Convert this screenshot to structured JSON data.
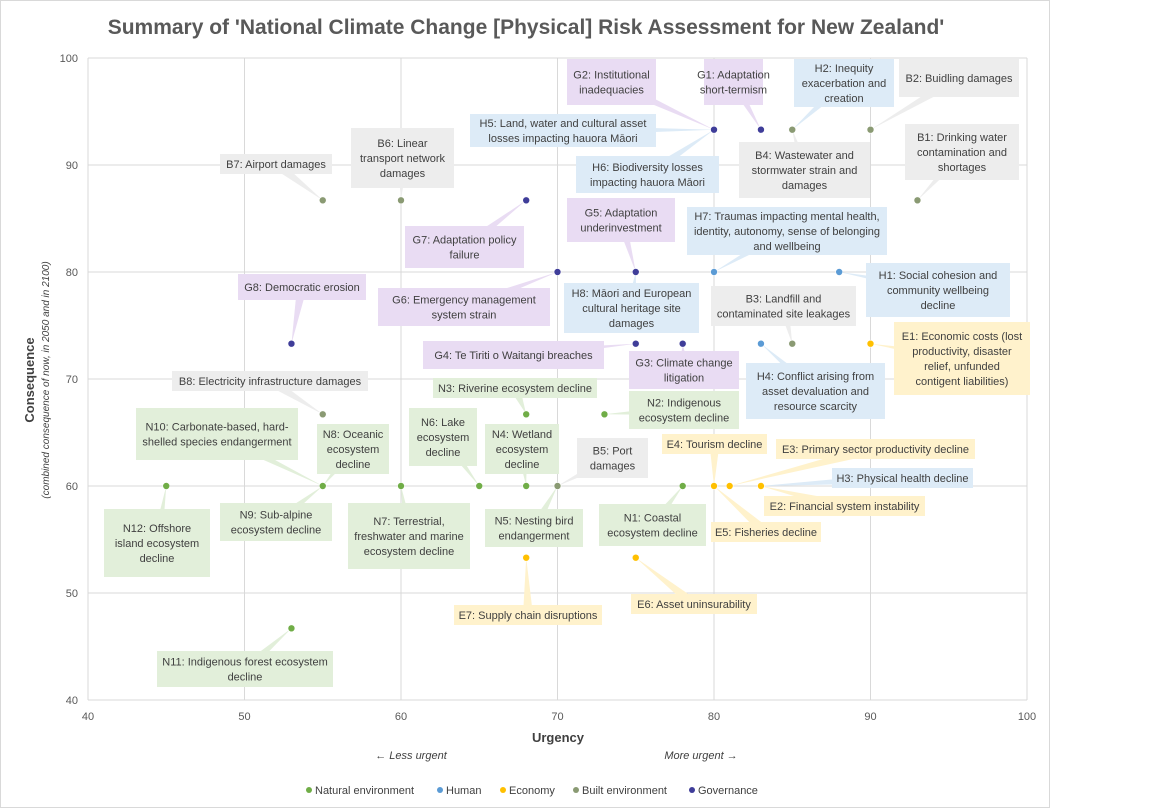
{
  "chart_data": {
    "type": "scatter",
    "title": "Summary of 'National Climate Change [Physical] Risk Assessment for New Zealand'",
    "xlabel": "Urgency",
    "ylabel": "Consequence",
    "ylabel_sub": "(combined consequence  of now, in 2050 and in 2100)",
    "xlim": [
      40,
      100
    ],
    "ylim": [
      40,
      100
    ],
    "xticks": [
      40,
      50,
      60,
      70,
      80,
      90,
      100
    ],
    "yticks": [
      40,
      50,
      60,
      70,
      80,
      90,
      100
    ],
    "grid": true,
    "less_urgent": "← Less urgent",
    "more_urgent": "More urgent →",
    "legend_position": "bottom",
    "categories": [
      {
        "key": "natural",
        "name": "Natural environment",
        "color": "#70ad47",
        "label_bg": "#e2efda"
      },
      {
        "key": "human",
        "name": "Human",
        "color": "#5b9bd5",
        "label_bg": "#ddebf7"
      },
      {
        "key": "economy",
        "name": "Economy",
        "color": "#ffc000",
        "label_bg": "#fff2cc"
      },
      {
        "key": "built",
        "name": "Built environment",
        "color": "#8a9a73",
        "label_bg": "#ededed"
      },
      {
        "key": "governance",
        "name": "Governance",
        "color": "#3f3d99",
        "label_bg": "#e9dcf3"
      }
    ],
    "points": [
      {
        "id": "N1",
        "cat": "natural",
        "x": 78,
        "y": 60,
        "label": [
          "N1: Coastal",
          "ecosystem decline"
        ]
      },
      {
        "id": "N2",
        "cat": "natural",
        "x": 73,
        "y": 66.7,
        "label": [
          "N2: Indigenous",
          "ecosystem decline"
        ]
      },
      {
        "id": "N3",
        "cat": "natural",
        "x": 68,
        "y": 66.7,
        "label": [
          "N3: Riverine ecosystem decline"
        ]
      },
      {
        "id": "N4",
        "cat": "natural",
        "x": 68,
        "y": 60,
        "label": [
          "N4: Wetland",
          "ecosystem",
          "decline"
        ]
      },
      {
        "id": "N5",
        "cat": "natural",
        "x": 70,
        "y": 60,
        "label": [
          "N5: Nesting bird",
          "endangerment"
        ]
      },
      {
        "id": "N6",
        "cat": "natural",
        "x": 65,
        "y": 60,
        "label": [
          "N6: Lake",
          "ecosystem",
          "decline"
        ]
      },
      {
        "id": "N7",
        "cat": "natural",
        "x": 60,
        "y": 60,
        "label": [
          "N7: Terrestrial,",
          "freshwater and marine",
          "ecosystem decline"
        ]
      },
      {
        "id": "N8",
        "cat": "natural",
        "x": 55,
        "y": 60,
        "label": [
          "N8: Oceanic",
          "ecosystem",
          "decline"
        ]
      },
      {
        "id": "N9",
        "cat": "natural",
        "x": 55,
        "y": 60,
        "label": [
          "N9: Sub-alpine",
          "ecosystem decline"
        ]
      },
      {
        "id": "N10",
        "cat": "natural",
        "x": 55,
        "y": 60,
        "label": [
          "N10: Carbonate-based, hard-",
          "shelled species endangerment"
        ]
      },
      {
        "id": "N11",
        "cat": "natural",
        "x": 53,
        "y": 46.7,
        "label": [
          "N11: Indigenous forest ecosystem",
          "decline"
        ]
      },
      {
        "id": "N12",
        "cat": "natural",
        "x": 45,
        "y": 60,
        "label": [
          "N12: Offshore",
          "island ecosystem",
          "decline"
        ]
      },
      {
        "id": "H1",
        "cat": "human",
        "x": 88,
        "y": 80,
        "label": [
          "H1: Social cohesion and",
          "community wellbeing",
          "decline"
        ]
      },
      {
        "id": "H2",
        "cat": "human",
        "x": 85,
        "y": 93.3,
        "label": [
          "H2: Inequity",
          "exacerbation and",
          "creation"
        ]
      },
      {
        "id": "H3",
        "cat": "human",
        "x": 83,
        "y": 60,
        "label": [
          "H3: Physical health decline"
        ]
      },
      {
        "id": "H4",
        "cat": "human",
        "x": 83,
        "y": 73.3,
        "label": [
          "H4: Conflict arising from",
          "asset devaluation and",
          "resource scarcity"
        ]
      },
      {
        "id": "H5",
        "cat": "human",
        "x": 80,
        "y": 93.3,
        "label": [
          "H5: Land, water and cultural asset",
          "losses impacting hauora Māori"
        ]
      },
      {
        "id": "H6",
        "cat": "human",
        "x": 80,
        "y": 93.3,
        "label": [
          "H6: Biodiversity losses",
          "impacting hauora Māori"
        ]
      },
      {
        "id": "H7",
        "cat": "human",
        "x": 80,
        "y": 80,
        "label": [
          "H7: Traumas impacting mental health,",
          "identity, autonomy, sense of belonging",
          "and wellbeing"
        ]
      },
      {
        "id": "H8",
        "cat": "human",
        "x": 75,
        "y": 80,
        "label": [
          "H8: Māori and European",
          "cultural heritage site",
          "damages"
        ]
      },
      {
        "id": "E1",
        "cat": "economy",
        "x": 90,
        "y": 73.3,
        "label": [
          "E1: Economic costs (lost",
          "productivity, disaster",
          "relief, unfunded",
          "contigent liabilities)"
        ]
      },
      {
        "id": "E2",
        "cat": "economy",
        "x": 83,
        "y": 60,
        "label": [
          "E2: Financial system instability"
        ]
      },
      {
        "id": "E3",
        "cat": "economy",
        "x": 81,
        "y": 60,
        "label": [
          "E3: Primary sector productivity decline"
        ]
      },
      {
        "id": "E4",
        "cat": "economy",
        "x": 80,
        "y": 60,
        "label": [
          "E4: Tourism decline"
        ]
      },
      {
        "id": "E5",
        "cat": "economy",
        "x": 80,
        "y": 60,
        "label": [
          "E5: Fisheries decline"
        ]
      },
      {
        "id": "E6",
        "cat": "economy",
        "x": 75,
        "y": 53.3,
        "label": [
          "E6: Asset uninsurability"
        ]
      },
      {
        "id": "E7",
        "cat": "economy",
        "x": 68,
        "y": 53.3,
        "label": [
          "E7: Supply chain disruptions"
        ]
      },
      {
        "id": "B1",
        "cat": "built",
        "x": 93,
        "y": 86.7,
        "label": [
          "B1: Drinking water",
          "contamination and",
          "shortages"
        ]
      },
      {
        "id": "B2",
        "cat": "built",
        "x": 90,
        "y": 93.3,
        "label": [
          "B2: Buidling damages"
        ]
      },
      {
        "id": "B3",
        "cat": "built",
        "x": 85,
        "y": 73.3,
        "label": [
          "B3: Landfill and",
          "contaminated site leakages"
        ]
      },
      {
        "id": "B4",
        "cat": "built",
        "x": 85,
        "y": 93.3,
        "label": [
          "B4: Wastewater and",
          "stormwater strain and",
          "damages"
        ]
      },
      {
        "id": "B5",
        "cat": "built",
        "x": 70,
        "y": 60,
        "label": [
          "B5: Port",
          "damages"
        ]
      },
      {
        "id": "B6",
        "cat": "built",
        "x": 60,
        "y": 86.7,
        "label": [
          "B6: Linear",
          "transport network",
          "damages"
        ]
      },
      {
        "id": "B7",
        "cat": "built",
        "x": 55,
        "y": 86.7,
        "label": [
          "B7: Airport damages"
        ]
      },
      {
        "id": "B8",
        "cat": "built",
        "x": 55,
        "y": 66.7,
        "label": [
          "B8: Electricity infrastructure damages"
        ]
      },
      {
        "id": "G1",
        "cat": "governance",
        "x": 83,
        "y": 93.3,
        "label": [
          "G1: Adaptation",
          "short-termism"
        ]
      },
      {
        "id": "G2",
        "cat": "governance",
        "x": 80,
        "y": 93.3,
        "label": [
          "G2: Institutional",
          "inadequacies"
        ]
      },
      {
        "id": "G3",
        "cat": "governance",
        "x": 78,
        "y": 73.3,
        "label": [
          "G3: Climate change",
          "litigation"
        ]
      },
      {
        "id": "G4",
        "cat": "governance",
        "x": 75,
        "y": 73.3,
        "label": [
          "G4: Te Tiriti o Waitangi breaches"
        ]
      },
      {
        "id": "G5",
        "cat": "governance",
        "x": 75,
        "y": 80,
        "label": [
          "G5: Adaptation",
          "underinvestment"
        ]
      },
      {
        "id": "G6",
        "cat": "governance",
        "x": 70,
        "y": 80,
        "label": [
          "G6: Emergency management",
          "system strain"
        ]
      },
      {
        "id": "G7",
        "cat": "governance",
        "x": 68,
        "y": 86.7,
        "label": [
          "G7: Adaptation policy",
          "failure"
        ]
      },
      {
        "id": "G8",
        "cat": "governance",
        "x": 53,
        "y": 73.3,
        "label": [
          "G8: Democratic erosion"
        ]
      }
    ]
  }
}
